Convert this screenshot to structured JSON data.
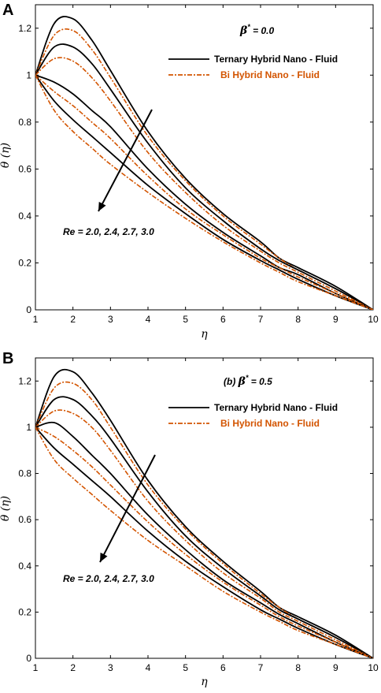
{
  "panels": [
    {
      "letter": "A",
      "subtitle_prefix": "",
      "beta_symbol": "β",
      "beta_superscript": "*",
      "beta_value": " = 0.0",
      "annotation": "Re = 2.0, 2.4, 2.7, 3.0",
      "legend": [
        {
          "label": "Ternary Hybrid Nano - Fluid",
          "color": "#000000",
          "style": "solid"
        },
        {
          "label": "Bi Hybrid Nano - Fluid",
          "color": "#d35400",
          "style": "dashdot"
        }
      ]
    },
    {
      "letter": "B",
      "subtitle_prefix": "(b)",
      "beta_symbol": "β",
      "beta_superscript": "*",
      "beta_value": " = 0.5",
      "annotation": "Re = 2.0, 2.4, 2.7, 3.0",
      "legend": [
        {
          "label": "Ternary Hybrid Nano - Fluid",
          "color": "#000000",
          "style": "solid"
        },
        {
          "label": "Bi Hybrid Nano - Fluid",
          "color": "#d35400",
          "style": "dashdot"
        }
      ]
    }
  ],
  "chart_data": [
    {
      "type": "line",
      "xlabel": "η",
      "ylabel": "θ (η)",
      "xlim": [
        1,
        10
      ],
      "ylim": [
        0,
        1.3
      ],
      "xticks": [
        1,
        2,
        3,
        4,
        5,
        6,
        7,
        8,
        9,
        10
      ],
      "yticks": [
        0,
        0.2,
        0.4,
        0.6,
        0.8,
        1.0,
        1.2
      ],
      "ytick_labels": [
        "0",
        "0.2",
        "0.4",
        "0.6",
        "0.8",
        "1",
        "1.2"
      ],
      "grid": false,
      "legend_position": "top-right",
      "x": [
        1,
        1.5,
        2,
        2.5,
        3,
        4,
        5,
        6,
        7,
        7.5,
        8,
        9,
        10
      ],
      "series": [
        {
          "name": "Ternary Hybrid Nano - Fluid",
          "color": "#000000",
          "style": "solid",
          "values": [
            1.0,
            1.22,
            1.24,
            1.15,
            1.02,
            0.76,
            0.56,
            0.41,
            0.29,
            0.22,
            0.18,
            0.1,
            0.0
          ]
        },
        {
          "name": "Bi Hybrid Nano - Fluid",
          "color": "#d35400",
          "style": "dashdot",
          "values": [
            1.0,
            1.17,
            1.19,
            1.11,
            0.99,
            0.74,
            0.55,
            0.4,
            0.28,
            0.22,
            0.17,
            0.09,
            0.0
          ]
        },
        {
          "name": "Ternary Hybrid Nano - Fluid",
          "color": "#000000",
          "style": "solid",
          "values": [
            1.0,
            1.12,
            1.12,
            1.05,
            0.94,
            0.71,
            0.52,
            0.38,
            0.26,
            0.21,
            0.17,
            0.09,
            0.0
          ]
        },
        {
          "name": "Bi Hybrid Nano - Fluid",
          "color": "#d35400",
          "style": "dashdot",
          "values": [
            1.0,
            1.07,
            1.06,
            0.99,
            0.89,
            0.67,
            0.5,
            0.36,
            0.25,
            0.2,
            0.16,
            0.08,
            0.0
          ]
        },
        {
          "name": "Ternary Hybrid Nano - Fluid",
          "color": "#000000",
          "style": "solid",
          "values": [
            1.0,
            0.97,
            0.92,
            0.85,
            0.78,
            0.6,
            0.45,
            0.33,
            0.23,
            0.18,
            0.15,
            0.07,
            0.0
          ]
        },
        {
          "name": "Bi Hybrid Nano - Fluid",
          "color": "#d35400",
          "style": "dashdot",
          "values": [
            1.0,
            0.93,
            0.87,
            0.8,
            0.73,
            0.57,
            0.43,
            0.32,
            0.22,
            0.18,
            0.14,
            0.07,
            0.0
          ]
        },
        {
          "name": "Ternary Hybrid Nano - Fluid",
          "color": "#000000",
          "style": "solid",
          "values": [
            1.0,
            0.89,
            0.81,
            0.74,
            0.67,
            0.53,
            0.41,
            0.3,
            0.21,
            0.17,
            0.13,
            0.06,
            0.0
          ]
        },
        {
          "name": "Bi Hybrid Nano - Fluid",
          "color": "#d35400",
          "style": "dashdot",
          "values": [
            1.0,
            0.85,
            0.76,
            0.69,
            0.62,
            0.5,
            0.39,
            0.29,
            0.2,
            0.16,
            0.12,
            0.06,
            0.0
          ]
        }
      ]
    },
    {
      "type": "line",
      "xlabel": "η",
      "ylabel": "θ (η)",
      "xlim": [
        1,
        10
      ],
      "ylim": [
        0,
        1.3
      ],
      "xticks": [
        1,
        2,
        3,
        4,
        5,
        6,
        7,
        8,
        9,
        10
      ],
      "yticks": [
        0,
        0.2,
        0.4,
        0.6,
        0.8,
        1.0,
        1.2
      ],
      "ytick_labels": [
        "0",
        "0.2",
        "0.4",
        "0.6",
        "0.8",
        "1",
        "1.2"
      ],
      "grid": false,
      "legend_position": "top-right",
      "x": [
        1,
        1.5,
        2,
        2.5,
        3,
        4,
        5,
        6,
        7,
        7.5,
        8,
        9,
        10
      ],
      "series": [
        {
          "name": "Ternary Hybrid Nano - Fluid",
          "color": "#000000",
          "style": "solid",
          "values": [
            1.0,
            1.22,
            1.24,
            1.15,
            1.03,
            0.77,
            0.57,
            0.42,
            0.29,
            0.22,
            0.18,
            0.1,
            0.0
          ]
        },
        {
          "name": "Bi Hybrid Nano - Fluid",
          "color": "#d35400",
          "style": "dashdot",
          "values": [
            1.0,
            1.17,
            1.19,
            1.12,
            1.0,
            0.75,
            0.56,
            0.41,
            0.28,
            0.22,
            0.17,
            0.09,
            0.0
          ]
        },
        {
          "name": "Ternary Hybrid Nano - Fluid",
          "color": "#000000",
          "style": "solid",
          "values": [
            1.0,
            1.12,
            1.12,
            1.05,
            0.95,
            0.72,
            0.53,
            0.39,
            0.27,
            0.21,
            0.17,
            0.09,
            0.0
          ]
        },
        {
          "name": "Bi Hybrid Nano - Fluid",
          "color": "#d35400",
          "style": "dashdot",
          "values": [
            1.0,
            1.07,
            1.06,
            1.0,
            0.9,
            0.68,
            0.51,
            0.37,
            0.26,
            0.2,
            0.16,
            0.08,
            0.0
          ]
        },
        {
          "name": "Ternary Hybrid Nano - Fluid",
          "color": "#000000",
          "style": "solid",
          "values": [
            1.0,
            1.02,
            0.96,
            0.88,
            0.8,
            0.62,
            0.47,
            0.34,
            0.24,
            0.19,
            0.15,
            0.07,
            0.0
          ]
        },
        {
          "name": "Bi Hybrid Nano - Fluid",
          "color": "#d35400",
          "style": "dashdot",
          "values": [
            1.0,
            0.96,
            0.9,
            0.83,
            0.75,
            0.59,
            0.45,
            0.33,
            0.23,
            0.18,
            0.14,
            0.07,
            0.0
          ]
        },
        {
          "name": "Ternary Hybrid Nano - Fluid",
          "color": "#000000",
          "style": "solid",
          "values": [
            1.0,
            0.91,
            0.84,
            0.77,
            0.7,
            0.55,
            0.42,
            0.31,
            0.21,
            0.17,
            0.13,
            0.06,
            0.0
          ]
        },
        {
          "name": "Bi Hybrid Nano - Fluid",
          "color": "#d35400",
          "style": "dashdot",
          "values": [
            1.0,
            0.86,
            0.78,
            0.71,
            0.64,
            0.51,
            0.4,
            0.29,
            0.2,
            0.16,
            0.12,
            0.06,
            0.0
          ]
        }
      ]
    }
  ]
}
